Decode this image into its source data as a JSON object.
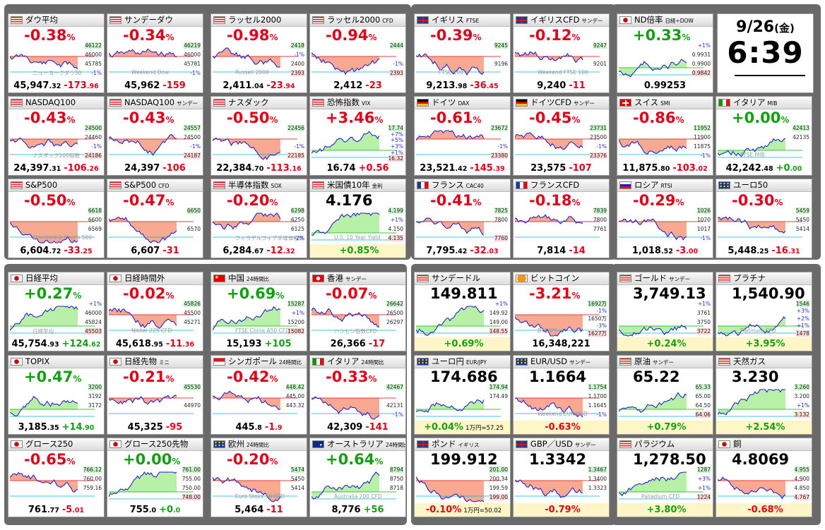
{
  "clock": {
    "date": "9/26",
    "weekday": "(金)",
    "time": "6:39"
  },
  "colors": {
    "down": "#e0001a",
    "up": "#12a012",
    "fill_down": "#f9a891",
    "fill_up": "#b8f0a8",
    "line": "#2222cc",
    "frame": "#6a6a6a"
  },
  "tiles": [
    {
      "id": "dow",
      "flag": "us",
      "name": "ダウ平均",
      "sub": "",
      "pct": "-0.38",
      "dir": "neg",
      "price": "",
      "fmain": "45,947",
      "fdec": ".32",
      "fch": "-173",
      "fchd": ".96",
      "ax": [
        "46122",
        "46000",
        "45785",
        "-1%"
      ],
      "wm": "ニューヨークダウ30"
    },
    {
      "id": "sunday-dow",
      "flag": "us",
      "name": "サンデーダウ",
      "sub": "",
      "pct": "-0.34",
      "dir": "neg",
      "price": "",
      "fmain": "45,962",
      "fdec": "",
      "fch": "-159",
      "fchd": "",
      "ax": [
        "46219",
        "46000",
        "45781",
        "-1%"
      ],
      "wm": "Weekend Dow"
    },
    {
      "id": "russell2000",
      "flag": "us",
      "name": "ラッセル2000",
      "sub": "",
      "pct": "-0.98",
      "dir": "neg",
      "price": "",
      "fmain": "2,411",
      "fdec": ".04",
      "fch": "-23",
      "fchd": ".94",
      "ax": [
        "2418",
        "-1%",
        "2400",
        "2393"
      ],
      "wm": "Russell 2000"
    },
    {
      "id": "russell2000-cfd",
      "flag": "us",
      "name": "ラッセル2000",
      "sub": "CFD",
      "pct": "-0.94",
      "dir": "neg",
      "price": "",
      "fmain": "2,412",
      "fdec": "",
      "fch": "-23",
      "fchd": "",
      "ax": [
        "2444",
        "",
        "-1%",
        "2393"
      ],
      "wm": ""
    },
    {
      "id": "ftse",
      "flag": "uk",
      "name": "イギリス",
      "sub": "FTSE",
      "pct": "-0.39",
      "dir": "neg",
      "price": "",
      "fmain": "9,213",
      "fdec": ".98",
      "fch": "-36",
      "fchd": ".45",
      "ax": [
        "9245",
        "",
        "9196",
        ""
      ],
      "wm": "FTSE 100"
    },
    {
      "id": "ftse-cfd",
      "flag": "uk",
      "name": "イギリスCFD",
      "sub": "サンデー",
      "pct": "-0.12",
      "dir": "neg",
      "price": "",
      "fmain": "9,240",
      "fdec": "",
      "fch": "-11",
      "fchd": "",
      "ax": [
        "9247",
        "",
        "9201",
        ""
      ],
      "wm": "Weekend FTSE 100"
    },
    {
      "id": "nd-ratio",
      "flag": "jp",
      "name": "ND倍率",
      "sub": "日経÷DOW",
      "pct": "+0.33",
      "dir": "pos",
      "price": "",
      "fmain": "0.99253",
      "fdec": "",
      "fch": "",
      "fchd": "",
      "ax": [
        "+1%",
        "0.9931",
        "0.9900",
        "0.9842"
      ],
      "wm": ""
    },
    {
      "id": "nasdaq100",
      "flag": "us",
      "name": "NASDAQ100",
      "sub": "",
      "pct": "-0.43",
      "dir": "neg",
      "price": "",
      "fmain": "24,397",
      "fdec": ".31",
      "fch": "-106",
      "fchd": ".26",
      "ax": [
        "24500",
        "24460",
        "-1%",
        "24186"
      ],
      "wm": "ナスダック100指数"
    },
    {
      "id": "nasdaq100-sunday",
      "flag": "us",
      "name": "NASDAQ100",
      "sub": "サンデー",
      "pct": "-0.43",
      "dir": "neg",
      "price": "",
      "fmain": "24,397",
      "fdec": "",
      "fch": "-106",
      "fchd": "",
      "ax": [
        "24557",
        "24500",
        "-1%",
        "24187"
      ],
      "wm": ""
    },
    {
      "id": "nasdaq",
      "flag": "us",
      "name": "ナスダック",
      "sub": "",
      "pct": "-0.50",
      "dir": "neg",
      "price": "",
      "fmain": "22,384",
      "fdec": ".70",
      "fch": "-113",
      "fchd": ".16",
      "ax": [
        "22456",
        "",
        "-1%",
        "22185"
      ],
      "wm": ""
    },
    {
      "id": "vix",
      "flag": "us",
      "name": "恐怖指数",
      "sub": "VIX",
      "pct": "+3.46",
      "dir": "pos-red",
      "price": "",
      "fmain": "16.74",
      "fdec": "",
      "fch": "+0.56",
      "fchd": "",
      "ax": [
        "17.74",
        "+7%",
        "+5%",
        "+3%",
        "+1%",
        "16.32"
      ],
      "wm": ""
    },
    {
      "id": "dax",
      "flag": "de",
      "name": "ドイツ",
      "sub": "DAX",
      "pct": "-0.61",
      "dir": "neg",
      "price": "",
      "fmain": "23,521",
      "fdec": ".42",
      "fch": "-145",
      "fchd": ".39",
      "ax": [
        "23672",
        "",
        "-1%",
        "23380"
      ],
      "wm": ""
    },
    {
      "id": "dax-cfd",
      "flag": "de",
      "name": "ドイツCFD",
      "sub": "サンデー",
      "pct": "-0.45",
      "dir": "neg",
      "price": "",
      "fmain": "23,575",
      "fdec": "",
      "fch": "-107",
      "fchd": "",
      "ax": [
        "23731",
        "23500",
        "-1%",
        "23376"
      ],
      "wm": ""
    },
    {
      "id": "smi",
      "flag": "ch",
      "name": "スイス",
      "sub": "SMI",
      "pct": "-0.86",
      "dir": "neg",
      "price": "",
      "fmain": "11,875",
      "fdec": ".80",
      "fch": "-103",
      "fchd": ".02",
      "ax": [
        "11952",
        "11900",
        "11875",
        "-1%"
      ],
      "wm": ""
    },
    {
      "id": "mib",
      "flag": "it",
      "name": "イタリア",
      "sub": "MIB",
      "pct": "+0.00",
      "dir": "pos",
      "price": "",
      "fmain": "42,242",
      "fdec": ".48",
      "fch": "+0",
      "fchd": ".00",
      "ax": [
        "42413",
        "42135",
        "",
        ""
      ],
      "wm": "FTSE MIB"
    },
    {
      "id": "sp500",
      "flag": "us",
      "name": "S&P500",
      "sub": "",
      "pct": "-0.50",
      "dir": "neg",
      "price": "",
      "fmain": "6,604",
      "fdec": ".72",
      "fch": "-33",
      "fchd": ".25",
      "ax": [
        "6618",
        "6600",
        "6569",
        ""
      ],
      "wm": "Standard & Poor's 500"
    },
    {
      "id": "sp500-cfd",
      "flag": "us",
      "name": "S&P500",
      "sub": "CFD",
      "pct": "-0.47",
      "dir": "neg",
      "price": "",
      "fmain": "6,607",
      "fdec": "",
      "fch": "-31",
      "fchd": "",
      "ax": [
        "6650",
        "",
        "6570",
        ""
      ],
      "wm": ""
    },
    {
      "id": "sox",
      "flag": "us",
      "name": "半導体指数",
      "sub": "SOX",
      "pct": "-0.20",
      "dir": "neg",
      "price": "",
      "fmain": "6,284",
      "fdec": ".67",
      "fch": "-12",
      "fchd": ".32",
      "ax": [
        "6298",
        "6250",
        "6125",
        "-2%"
      ],
      "wm": "フィラデルフィア半導体指数"
    },
    {
      "id": "us10y",
      "flag": "us",
      "name": "米国債10年",
      "sub": "金利",
      "pct": "",
      "dir": "pos",
      "price": "4.176",
      "fmain": "",
      "fdec": "",
      "fch": "+0.85%",
      "fchd": "",
      "ax": [
        "4.199",
        "+1%",
        "4.150",
        "4.135"
      ],
      "wm": "U.S. 10 Year Yield"
    },
    {
      "id": "cac40",
      "flag": "fr",
      "name": "フランス",
      "sub": "CAC40",
      "pct": "-0.41",
      "dir": "neg",
      "price": "",
      "fmain": "7,795",
      "fdec": ".42",
      "fch": "-32",
      "fchd": ".03",
      "ax": [
        "7825",
        "7800",
        "",
        "7760"
      ],
      "wm": ""
    },
    {
      "id": "cac-cfd",
      "flag": "fr",
      "name": "フランスCFD",
      "sub": "",
      "pct": "-0.18",
      "dir": "neg",
      "price": "",
      "fmain": "7,814",
      "fdec": "",
      "fch": "-14",
      "fchd": "",
      "ax": [
        "7839",
        "7800",
        "7761",
        ""
      ],
      "wm": ""
    },
    {
      "id": "rtsi",
      "flag": "ru",
      "name": "ロシア",
      "sub": "RTSI",
      "pct": "-0.29",
      "dir": "neg",
      "price": "",
      "fmain": "1,018",
      "fdec": ".52",
      "fch": "-3",
      "fchd": ".00",
      "ax": [
        "1026",
        "1020",
        "1017",
        "-1%"
      ],
      "wm": ""
    },
    {
      "id": "euro50",
      "flag": "eu",
      "name": "ユーロ50",
      "sub": "",
      "pct": "-0.30",
      "dir": "neg",
      "price": "",
      "fmain": "5,448",
      "fdec": ".25",
      "fch": "-16",
      "fchd": ".31",
      "ax": [
        "5459",
        "5450",
        "5414",
        ""
      ],
      "wm": ""
    },
    {
      "id": "nikkei",
      "flag": "jp",
      "name": "日経平均",
      "sub": "",
      "pct": "+0.27",
      "dir": "pos",
      "price": "",
      "fmain": "45,754",
      "fdec": ".93",
      "fch": "+124",
      "fchd": ".62",
      "ax": [
        "+1%",
        "46000",
        "45824",
        "45503"
      ],
      "wm": "日経平均"
    },
    {
      "id": "nikkei-after",
      "flag": "jp",
      "name": "日経時間外",
      "sub": "",
      "pct": "-0.02",
      "dir": "neg",
      "price": "",
      "fmain": "45,618",
      "fdec": ".95",
      "fch": "-11",
      "fchd": ".36",
      "ax": [
        "45826",
        "45500",
        "45271",
        ""
      ],
      "wm": "Nikkei 225 CFD"
    },
    {
      "id": "china",
      "flag": "cn",
      "name": "中国",
      "sub": "24時間比",
      "pct": "+0.69",
      "dir": "pos",
      "price": "",
      "fmain": "15,193",
      "fdec": "",
      "fch": "+105",
      "fchd": "",
      "ax": [
        "15287",
        "+1%",
        "15200",
        "15082"
      ],
      "wm": "FTSE China A50 CFD"
    },
    {
      "id": "hongkong",
      "flag": "hk",
      "name": "香港",
      "sub": "サンデー",
      "pct": "-0.07",
      "dir": "neg",
      "price": "",
      "fmain": "26,366",
      "fdec": "",
      "fch": "-17",
      "fchd": "",
      "ax": [
        "26642",
        "26500",
        "26297",
        ""
      ],
      "wm": "ハンセン指数CFD"
    },
    {
      "id": "usdjpy-sunday",
      "flag": "us",
      "name": "サンデードル",
      "sub": "",
      "pct": "",
      "dir": "pos",
      "price": "149.811",
      "fmain": "",
      "fdec": "",
      "fch": "+0.69%",
      "fchd": "",
      "ax": [
        "+1%",
        "149.92",
        "149.00",
        "148.55"
      ],
      "wm": ""
    },
    {
      "id": "bitcoin",
      "flag": "btc",
      "name": "ビットコイン",
      "sub": "",
      "pct": "-3.21",
      "dir": "neg",
      "price": "",
      "fmain": "16,348,221",
      "fdec": "",
      "fch": "",
      "fchd": "",
      "ax": [
        "1692万",
        "-1%",
        "1650万",
        "-3%",
        "1627万"
      ],
      "wm": "BTC/JPY"
    },
    {
      "id": "gold",
      "flag": "us",
      "name": "ゴールド",
      "sub": "サンデー",
      "pct": "",
      "dir": "pos",
      "price": "3,749.13",
      "fmain": "",
      "fdec": "",
      "fch": "+0.24%",
      "fchd": "",
      "ax": [
        "+1%",
        "3761",
        "3750",
        "3722"
      ],
      "wm": ""
    },
    {
      "id": "platinum",
      "flag": "us",
      "name": "プラチナ",
      "sub": "",
      "pct": "",
      "dir": "pos",
      "price": "1,540.90",
      "fmain": "",
      "fdec": "",
      "fch": "+3.95%",
      "fchd": "",
      "ax": [
        "1546",
        "+3%",
        "+2%",
        "+1%",
        "1478"
      ],
      "wm": "Platinum CFD"
    },
    {
      "id": "topix",
      "flag": "jp",
      "name": "TOPIX",
      "sub": "",
      "pct": "+0.47",
      "dir": "pos",
      "price": "",
      "fmain": "3,185",
      "fdec": ".35",
      "fch": "+14",
      "fchd": ".90",
      "ax": [
        "3200",
        "3192",
        "3172",
        ""
      ],
      "wm": ""
    },
    {
      "id": "nikkei-fut",
      "flag": "jp",
      "name": "日経先物",
      "sub": "ミニ",
      "pct": "-0.21",
      "dir": "neg",
      "price": "",
      "fmain": "45,325",
      "fdec": "",
      "fch": "-95",
      "fchd": "",
      "ax": [
        "45530",
        "",
        "44970",
        ""
      ],
      "wm": ""
    },
    {
      "id": "singapore",
      "flag": "sg",
      "name": "シンガポール",
      "sub": "24時間比",
      "pct": "-0.42",
      "dir": "neg",
      "price": "",
      "fmain": "445",
      "fdec": ".8",
      "fch": "-1",
      "fchd": ".9",
      "ax": [
        "448.42",
        "445.00",
        "443.32",
        ""
      ],
      "wm": ""
    },
    {
      "id": "italy-24h",
      "flag": "it",
      "name": "イタリア",
      "sub": "24時間比",
      "pct": "-0.33",
      "dir": "neg",
      "price": "",
      "fmain": "42,309",
      "fdec": "",
      "fch": "-141",
      "fchd": "",
      "ax": [
        "42467",
        "",
        "42131",
        "-1%"
      ],
      "wm": ""
    },
    {
      "id": "eurjpy",
      "flag": "eu",
      "name": "ユーロ円",
      "sub": "EUR/JPY",
      "pct": "",
      "dir": "pos",
      "price": "174.686",
      "fmain": "",
      "fdec": "",
      "fch": "+0.04%",
      "fchd": "",
      "note": "1万円=57.25",
      "ax": [
        "174.94",
        "174.49",
        "",
        ""
      ],
      "wm": ""
    },
    {
      "id": "eurusd",
      "flag": "eu",
      "name": "EUR/USD",
      "sub": "サンデー",
      "pct": "",
      "dir": "neg",
      "price": "1.1664",
      "fmain": "",
      "fdec": "",
      "fch": "-0.63%",
      "fchd": "",
      "ax": [
        "1.1754",
        "1.1700",
        "1.1645",
        "-1%"
      ],
      "wm": "Weekend EUR/USD"
    },
    {
      "id": "crude",
      "flag": "us",
      "name": "原油",
      "sub": "サンデー",
      "pct": "",
      "dir": "pos",
      "price": "65.22",
      "fmain": "",
      "fdec": "",
      "fch": "+0.79%",
      "fchd": "",
      "ax": [
        "65.33",
        "65.00",
        "64.50",
        "64.06"
      ],
      "wm": ""
    },
    {
      "id": "natgas",
      "flag": "us",
      "name": "天然ガス",
      "sub": "",
      "pct": "",
      "dir": "pos",
      "price": "3.230",
      "fmain": "",
      "fdec": "",
      "fch": "+2.54%",
      "fchd": "",
      "ax": [
        "3.260",
        "3.200",
        "+1%",
        "3.132"
      ],
      "wm": ""
    },
    {
      "id": "growth250",
      "flag": "jp",
      "name": "グロース250",
      "sub": "",
      "pct": "-0.65",
      "dir": "neg",
      "price": "",
      "fmain": "761",
      "fdec": ".77",
      "fch": "-5",
      "fchd": ".01",
      "ax": [
        "766.12",
        "760.00",
        "759.16",
        ""
      ],
      "wm": ""
    },
    {
      "id": "growth250-fut",
      "flag": "jp",
      "name": "グロース250先物",
      "sub": "",
      "pct": "+0.00",
      "dir": "pos",
      "price": "",
      "fmain": "755",
      "fdec": ".0",
      "fch": "+0",
      "fchd": ".0",
      "ax": [
        "761.00",
        "755.00",
        "750.00",
        "748.00"
      ],
      "wm": ""
    },
    {
      "id": "europe",
      "flag": "eu",
      "name": "欧州",
      "sub": "24時間比",
      "pct": "-0.20",
      "dir": "neg",
      "price": "",
      "fmain": "5,464",
      "fdec": "",
      "fch": "-11",
      "fchd": "",
      "ax": [
        "5474",
        "5450",
        "5414",
        ""
      ],
      "wm": "Euro Stoxx 50 CFD"
    },
    {
      "id": "australia",
      "flag": "au",
      "name": "オーストラリア",
      "sub": "24時間比",
      "pct": "+0.64",
      "dir": "pos",
      "price": "",
      "fmain": "8,776",
      "fdec": "",
      "fch": "+56",
      "fchd": "",
      "ax": [
        "8794",
        "8750",
        "8718",
        ""
      ],
      "wm": "Australia 200 CFD"
    },
    {
      "id": "gbpjpy",
      "flag": "uk",
      "name": "ポンド",
      "sub": "イギリス",
      "pct": "",
      "dir": "neg",
      "price": "199.912",
      "fmain": "",
      "fdec": "",
      "fch": "-0.10%",
      "fchd": "",
      "note": "1万円=50.02",
      "ax": [
        "201.00",
        "200.34",
        "199.59",
        "199.00"
      ],
      "wm": ""
    },
    {
      "id": "gbpusd",
      "flag": "uk",
      "name": "GBP／USD",
      "sub": "サンデー",
      "pct": "",
      "dir": "neg",
      "price": "1.3342",
      "fmain": "",
      "fdec": "",
      "fch": "-0.79%",
      "fchd": "",
      "ax": [
        "1.3467",
        "1.3400",
        "1.3323",
        ""
      ],
      "wm": ""
    },
    {
      "id": "palladium",
      "flag": "us",
      "name": "パラジウム",
      "sub": "",
      "pct": "",
      "dir": "pos",
      "price": "1,278.50",
      "fmain": "",
      "fdec": "",
      "fch": "+3.80%",
      "fchd": "",
      "ax": [
        "1287",
        "+3%",
        "+1%",
        "1224"
      ],
      "wm": "Palladium CFD"
    },
    {
      "id": "copper",
      "flag": "jp",
      "name": "銅",
      "sub": "",
      "pct": "",
      "dir": "neg",
      "price": "4.8069",
      "fmain": "",
      "fdec": "",
      "fch": "-0.68%",
      "fchd": "",
      "ax": [
        "4.955",
        "4.900",
        "4.850",
        "4.767"
      ],
      "wm": ""
    }
  ]
}
